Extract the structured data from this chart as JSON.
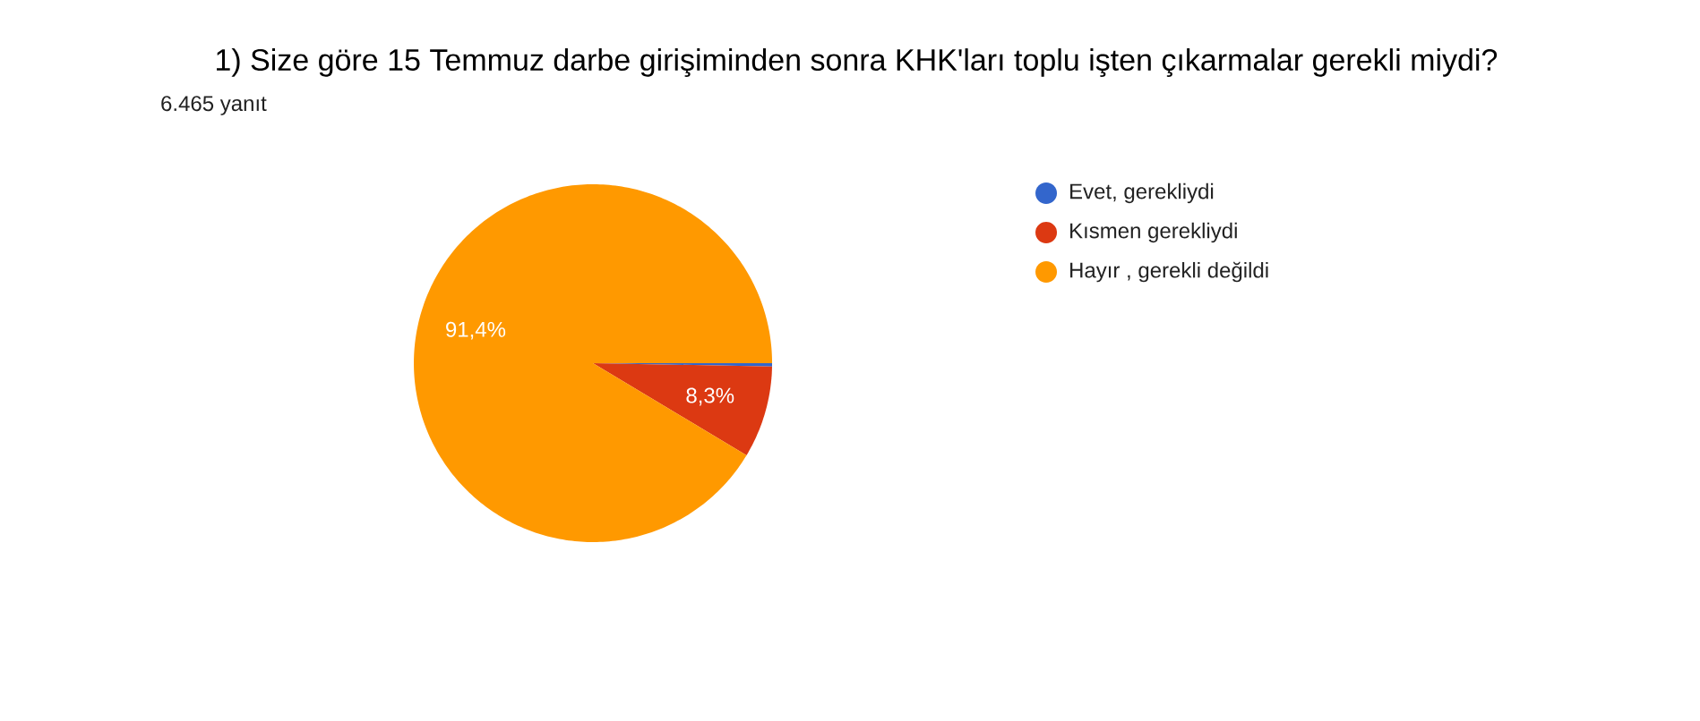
{
  "chart_data": {
    "type": "pie",
    "title": "1) Size göre 15 Temmuz darbe girişiminden sonra KHK'ları toplu işten çıkarmalar gerekli miydi?",
    "subtitle": "6.465 yanıt",
    "categories": [
      "Evet, gerekliydi",
      "Kısmen gerekliydi",
      "Hayır , gerekli değildi"
    ],
    "values": [
      0.3,
      8.3,
      91.4
    ],
    "colors": [
      "#3366cc",
      "#dc3912",
      "#ff9900"
    ],
    "value_labels": [
      null,
      "8,3%",
      "91,4%"
    ],
    "legend": "right"
  }
}
